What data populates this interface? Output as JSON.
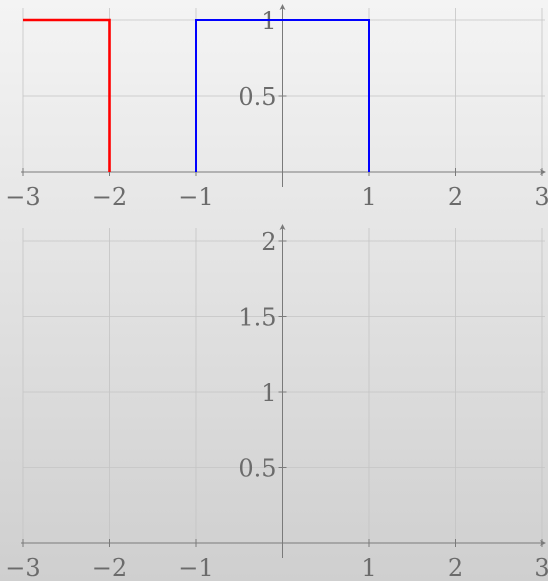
{
  "chart_data": [
    {
      "type": "line",
      "title": "",
      "xlabel": "",
      "ylabel": "",
      "xlim": [
        -3,
        3
      ],
      "ylim": [
        0,
        1
      ],
      "grid": true,
      "x_ticks": [
        -3,
        -2,
        -1,
        1,
        2,
        3
      ],
      "x_tick_labels": [
        "−3",
        "−2",
        "−1",
        "1",
        "2",
        "3"
      ],
      "y_ticks": [
        0.5,
        1
      ],
      "y_tick_labels": [
        "0.5",
        "1"
      ],
      "series": [
        {
          "color": "#ff0000",
          "points": [
            [
              -3,
              1
            ],
            [
              -2,
              1
            ],
            [
              -2,
              0
            ]
          ]
        },
        {
          "color": "#0000ff",
          "points": [
            [
              -1,
              0
            ],
            [
              -1,
              1
            ],
            [
              1,
              1
            ],
            [
              1,
              0
            ]
          ]
        }
      ]
    },
    {
      "type": "line",
      "title": "",
      "xlabel": "",
      "ylabel": "",
      "xlim": [
        -3,
        3
      ],
      "ylim": [
        0,
        2
      ],
      "grid": true,
      "x_ticks": [
        -3,
        -2,
        -1,
        1,
        2,
        3
      ],
      "x_tick_labels": [
        "−3",
        "−2",
        "−1",
        "1",
        "2",
        "3"
      ],
      "y_ticks": [
        0.5,
        1,
        1.5,
        2
      ],
      "y_tick_labels": [
        "0.5",
        "1",
        "1.5",
        "2"
      ],
      "series": []
    }
  ]
}
